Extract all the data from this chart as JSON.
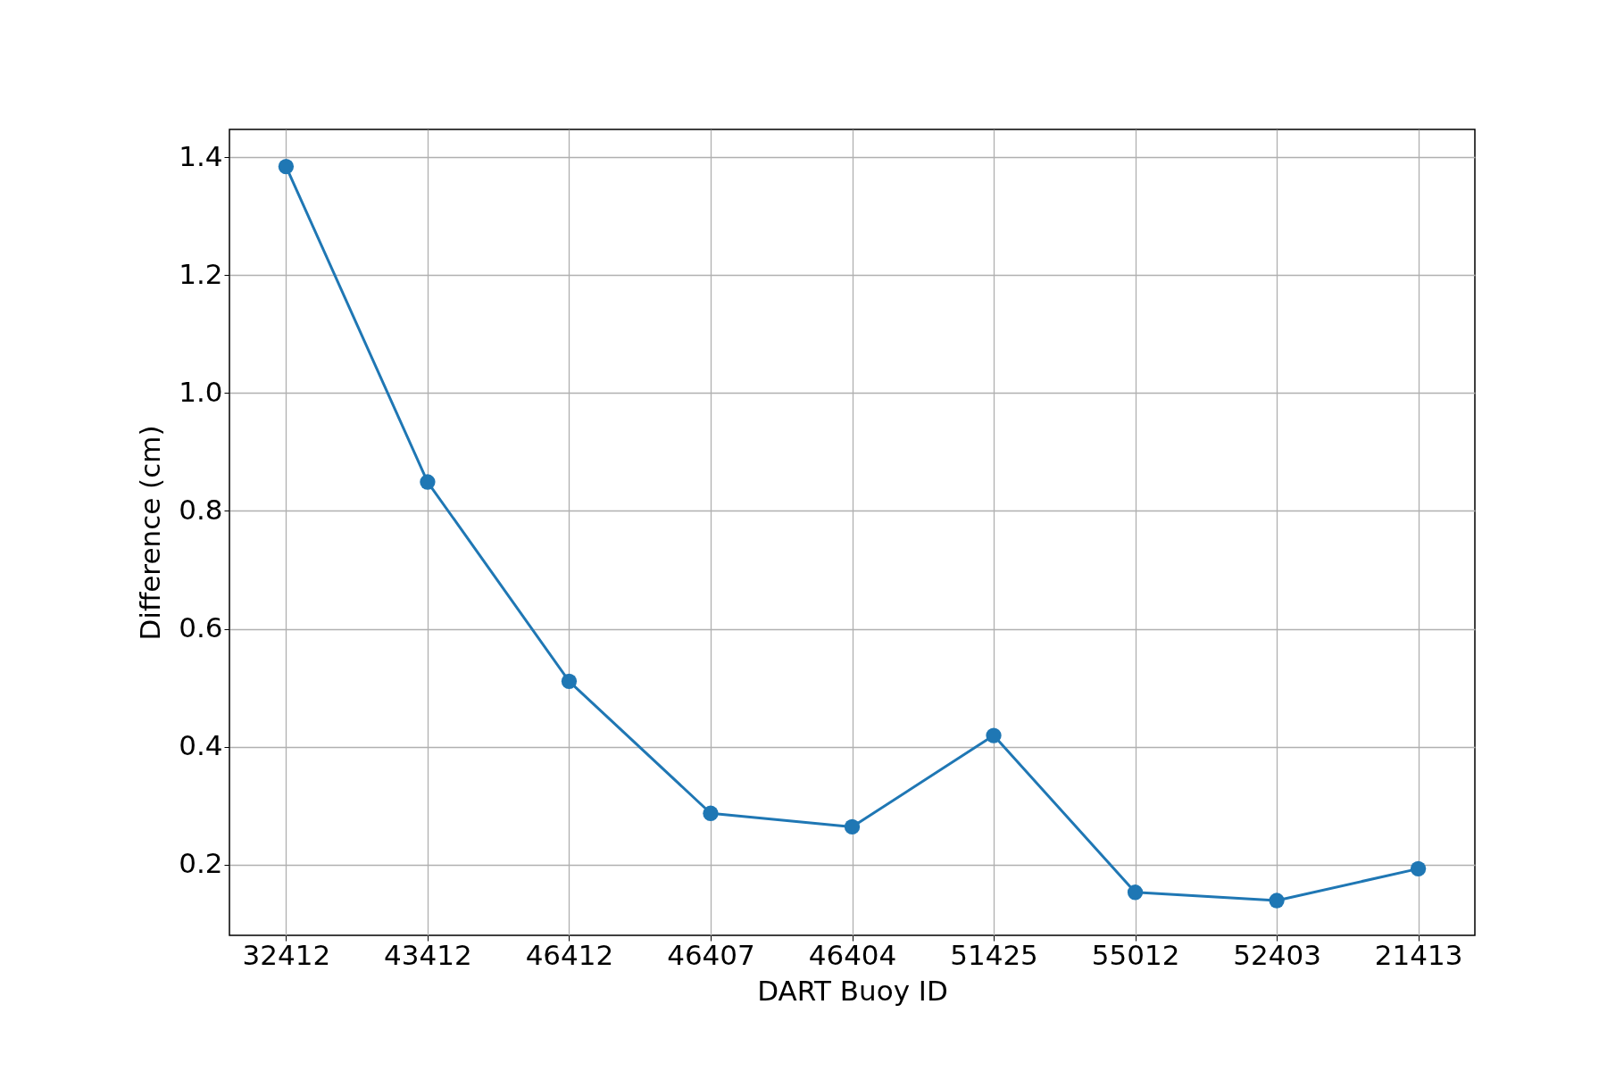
{
  "chart_data": {
    "type": "line",
    "xlabel": "DART Buoy ID",
    "ylabel": "Difference (cm)",
    "categories": [
      "32412",
      "43412",
      "46412",
      "46407",
      "46404",
      "51425",
      "55012",
      "52403",
      "21413"
    ],
    "series": [
      {
        "color": "#1f77b4",
        "values": [
          1.384,
          0.849,
          0.511,
          0.287,
          0.264,
          0.419,
          0.153,
          0.139,
          0.193
        ]
      }
    ],
    "ylim": [
      0.08,
      1.447
    ],
    "yticks": [
      0.2,
      0.4,
      0.6,
      0.8,
      {
        "value": 1,
        "label": "1.0"
      },
      1.2,
      1.4
    ],
    "grid": true,
    "marker": "circle",
    "line_style": "solid"
  }
}
